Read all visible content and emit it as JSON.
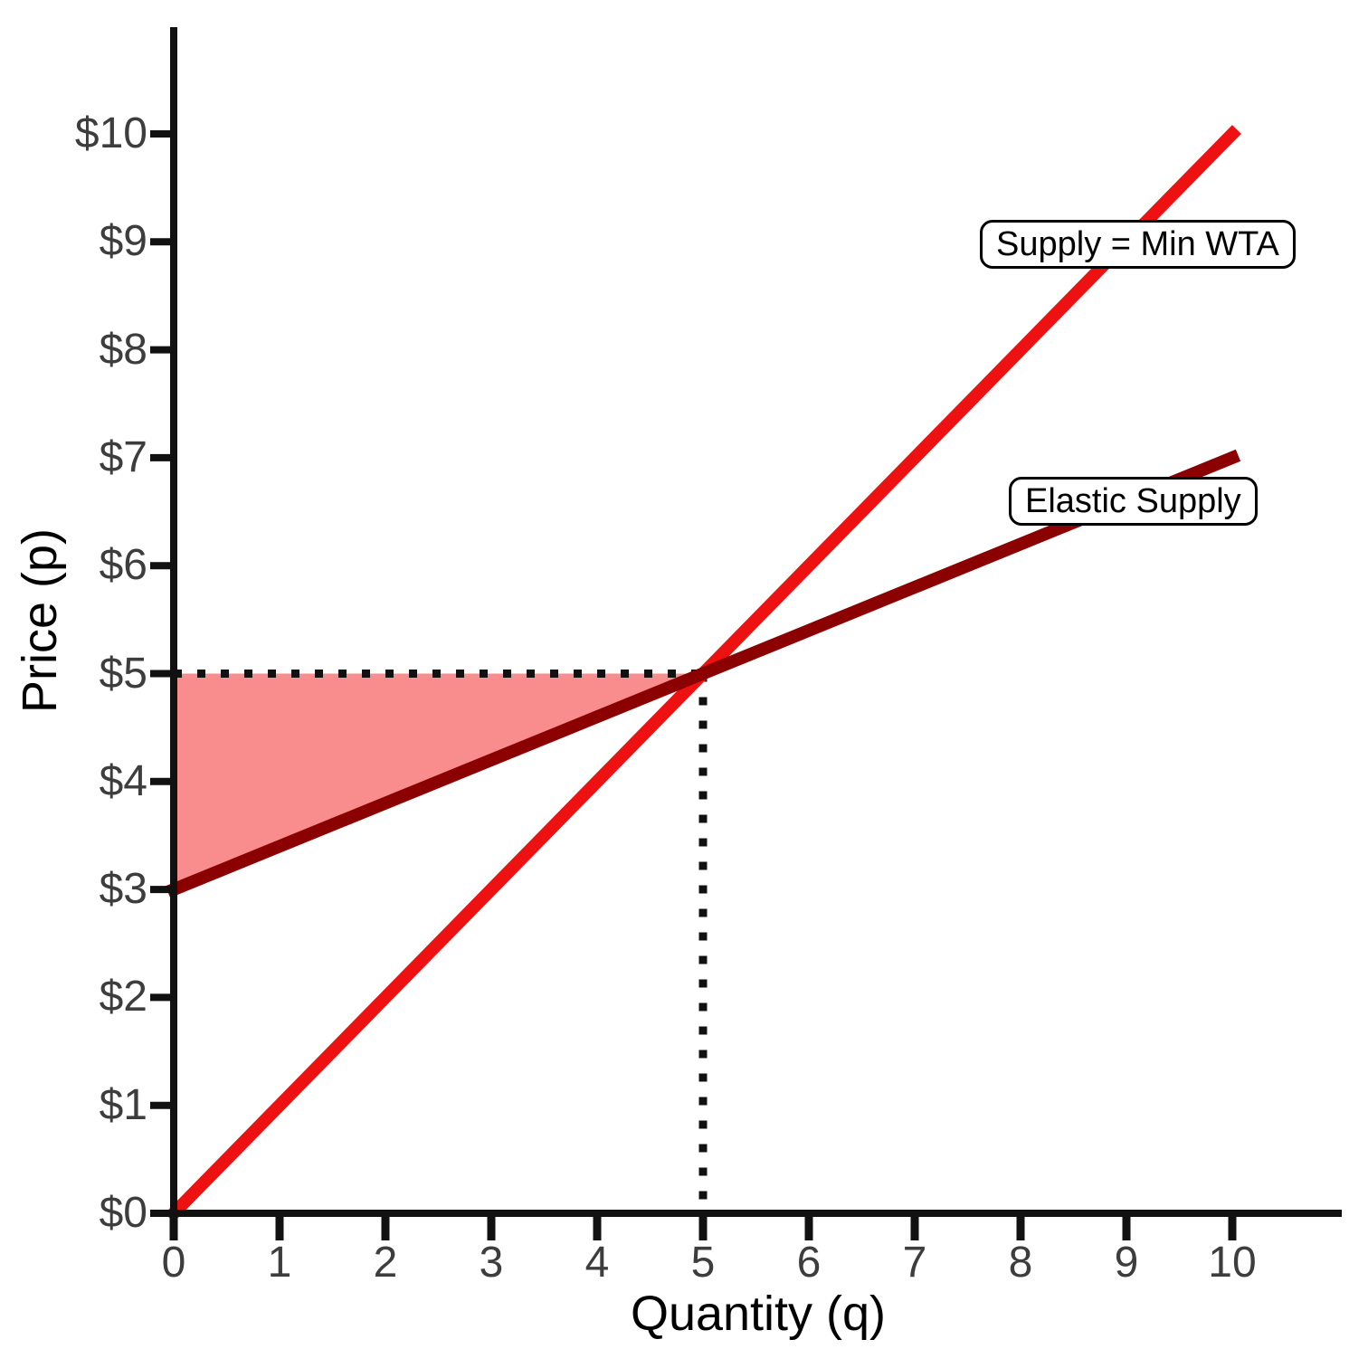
{
  "chart_data": {
    "type": "line",
    "title": "",
    "xlabel": "Quantity (q)",
    "ylabel": "Price (p)",
    "xlim": [
      0,
      11
    ],
    "ylim": [
      0,
      11
    ],
    "grid": false,
    "legend_position": "inline-boxed-labels-on-lines",
    "x_ticks": {
      "values": [
        0,
        1,
        2,
        3,
        4,
        5,
        6,
        7,
        8,
        9,
        10
      ],
      "labels": [
        "0",
        "1",
        "2",
        "3",
        "4",
        "5",
        "6",
        "7",
        "8",
        "9",
        "10"
      ]
    },
    "y_ticks": {
      "values": [
        0,
        1,
        2,
        3,
        4,
        5,
        6,
        7,
        8,
        9,
        10
      ],
      "labels": [
        "$0",
        "$1",
        "$2",
        "$3",
        "$4",
        "$5",
        "$6",
        "$7",
        "$8",
        "$9",
        "$10"
      ]
    },
    "series": [
      {
        "name": "Supply = Min WTA",
        "color": "#EE1111",
        "points": [
          [
            0,
            0
          ],
          [
            10,
            10
          ]
        ],
        "equation_hint": "p = q"
      },
      {
        "name": "Elastic Supply",
        "color": "#8B0000",
        "points": [
          [
            0,
            3
          ],
          [
            10,
            7
          ]
        ],
        "equation_hint": "p = 3 + 0.4q"
      }
    ],
    "equilibrium": {
      "q": 5,
      "p": 5,
      "price_tick_label": "$5",
      "quantity_tick_label": "5",
      "guide_color": "#111111",
      "guide_style": "dotted"
    },
    "shaded_region": {
      "description": "triangle between the $5 price line and the elastic supply curve from q=0 to q=5",
      "fill": "#F98C8C",
      "vertices": [
        [
          0,
          3
        ],
        [
          5,
          5
        ],
        [
          0,
          5
        ]
      ]
    },
    "axis_color": "#111111",
    "tick_label_color": "#3d3d3d"
  }
}
